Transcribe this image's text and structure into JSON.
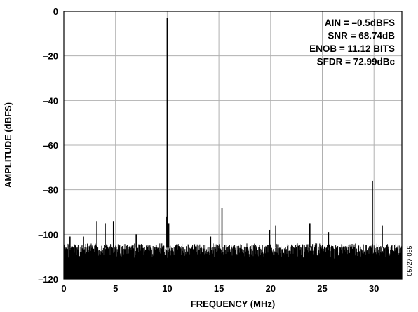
{
  "chart_data": {
    "type": "line",
    "xlabel": "FREQUENCY (MHz)",
    "ylabel": "AMPLITUDE (dBFS)",
    "xlim": [
      0,
      32.7
    ],
    "ylim": [
      -120,
      0
    ],
    "x_ticks": [
      0,
      5,
      10,
      15,
      20,
      25,
      30
    ],
    "y_ticks": [
      0,
      -20,
      -40,
      -60,
      -80,
      -100,
      -120
    ],
    "x_tick_labels": [
      "0",
      "5",
      "10",
      "15",
      "20",
      "25",
      "30"
    ],
    "y_tick_labels": [
      "0",
      "–20",
      "–40",
      "–60",
      "–80",
      "–100",
      "–120"
    ],
    "grid": true,
    "annotations": [
      "AIN = –0.5dBFS",
      "SNR = 68.74dB",
      "ENOB = 11.12 BITS",
      "SFDR = 72.99dBc"
    ],
    "annotation_placement": "top-right",
    "figure_code": "05727-055",
    "noise_floor": {
      "x_range": [
        0,
        32.7
      ],
      "y_range": [
        -120,
        -104
      ]
    },
    "peaks": [
      {
        "x": 10.0,
        "y": -3
      },
      {
        "x": 29.85,
        "y": -76
      },
      {
        "x": 15.3,
        "y": -88
      },
      {
        "x": 3.2,
        "y": -94
      },
      {
        "x": 4.0,
        "y": -95
      },
      {
        "x": 4.8,
        "y": -94
      },
      {
        "x": 7.0,
        "y": -100
      },
      {
        "x": 9.9,
        "y": -92
      },
      {
        "x": 10.15,
        "y": -95
      },
      {
        "x": 14.2,
        "y": -101
      },
      {
        "x": 19.9,
        "y": -98
      },
      {
        "x": 20.5,
        "y": -96
      },
      {
        "x": 23.8,
        "y": -95
      },
      {
        "x": 25.6,
        "y": -99
      },
      {
        "x": 30.8,
        "y": -96
      },
      {
        "x": 0.6,
        "y": -101
      },
      {
        "x": 1.9,
        "y": -101
      }
    ]
  },
  "colors": {
    "trace": "#000000",
    "grid": "#b0b0b0",
    "axis": "#000000"
  }
}
